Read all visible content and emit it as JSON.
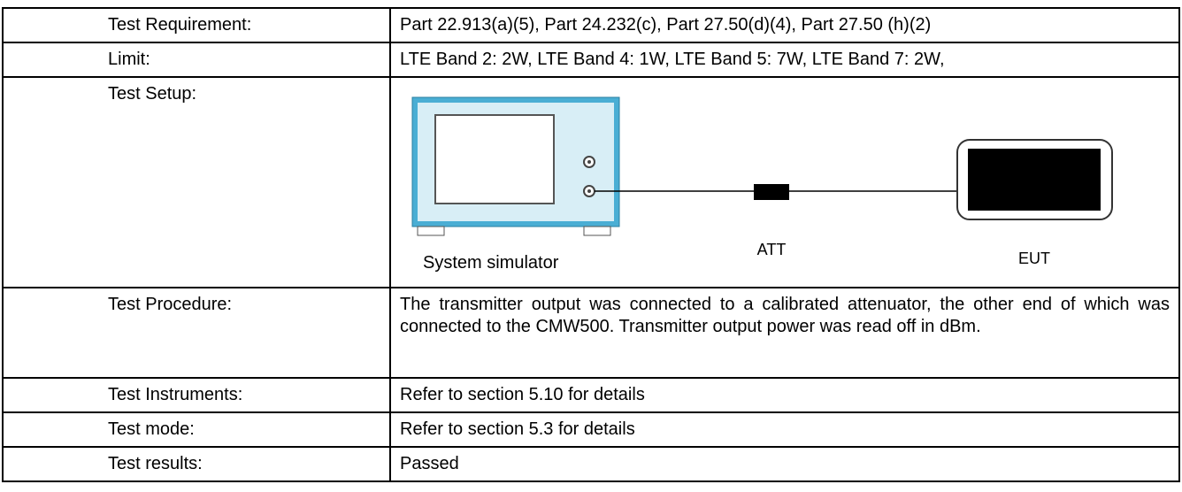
{
  "table": {
    "rows": [
      [
        "Test Requirement:",
        "Part 22.913(a)(5), Part 24.232(c), Part 27.50(d)(4), Part 27.50 (h)(2)"
      ],
      [
        "Limit:",
        "LTE Band 2: 2W, LTE Band 4: 1W, LTE Band 5: 7W, LTE Band 7: 2W,"
      ],
      [
        "Test Setup:",
        ""
      ],
      [
        "Test Procedure:",
        "The transmitter output was connected to a calibrated attenuator, the other end of which was connected to the CMW500. Transmitter output power was read off in dBm."
      ],
      [
        "Test Instruments:",
        "Refer to section 5.10 for details"
      ],
      [
        "Test mode:",
        "Refer to section 5.3 for details"
      ],
      [
        "Test results:",
        "Passed"
      ]
    ]
  },
  "diagram": {
    "labels": [
      "System simulator",
      "ATT",
      "EUT"
    ]
  }
}
